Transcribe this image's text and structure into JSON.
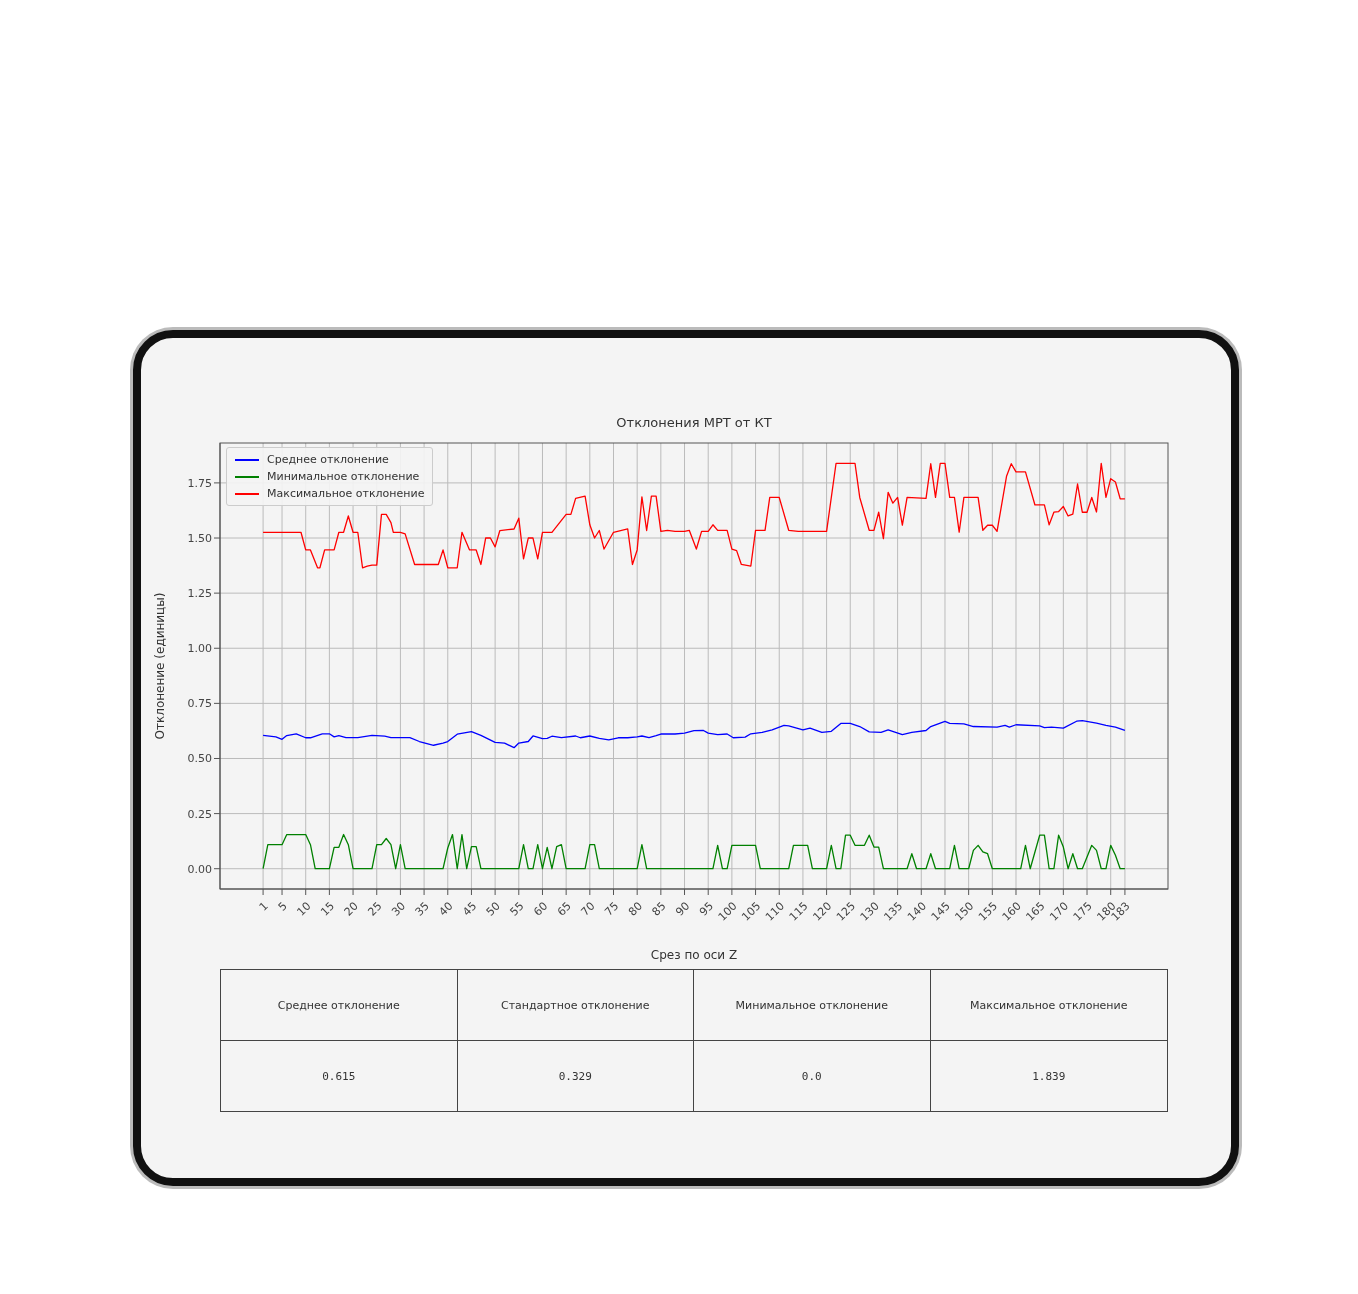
{
  "chart_data": {
    "type": "line",
    "title": "Отклонения МРТ от КТ",
    "xlabel": "Срез по оси Z",
    "ylabel": "Отклонение (единицы)",
    "xlim": [
      -8.1,
      192.1
    ],
    "xticks": [
      1,
      5,
      10,
      15,
      20,
      25,
      30,
      35,
      40,
      45,
      50,
      55,
      60,
      65,
      70,
      75,
      80,
      85,
      90,
      95,
      100,
      105,
      110,
      115,
      120,
      125,
      130,
      135,
      140,
      145,
      150,
      155,
      160,
      165,
      170,
      175,
      180,
      183
    ],
    "ylim": [
      -0.092,
      1.931
    ],
    "yticks": [
      {
        "value": 0,
        "label": "0.00"
      },
      {
        "value": 0.25,
        "label": "0.25"
      },
      {
        "value": 0.5,
        "label": "0.50"
      },
      {
        "value": 0.75,
        "label": "0.75"
      },
      {
        "value": 1,
        "label": "1.00"
      },
      {
        "value": 1.25,
        "label": "1.25"
      },
      {
        "value": 1.5,
        "label": "1.50"
      },
      {
        "value": 1.75,
        "label": "1.75"
      }
    ],
    "grid": true,
    "legend": "top left",
    "marker": "none",
    "line_style": "solid",
    "series": [
      {
        "name": "Среднее отклонение",
        "color": "#0000ff",
        "x": [
          1,
          3.7,
          5,
          6,
          8,
          10,
          11,
          13.5,
          15,
          16,
          17,
          18.5,
          21,
          24,
          26.7,
          28,
          32,
          34,
          37,
          39,
          40,
          42,
          45,
          47,
          50,
          52,
          54,
          55,
          57,
          58,
          60,
          61,
          62,
          64,
          67,
          68,
          70,
          72,
          74,
          76,
          78,
          80,
          81,
          82.5,
          84,
          85,
          88,
          90,
          92,
          94,
          95,
          97,
          99,
          100.3,
          102.8,
          104,
          106.4,
          108.5,
          111,
          112,
          115,
          116.5,
          119,
          121,
          123,
          125,
          127,
          129,
          131.5,
          133,
          136,
          138,
          141,
          142,
          145,
          146,
          149,
          151,
          156,
          157.7,
          158.6,
          160,
          165,
          166,
          167.5,
          170,
          172.8,
          174,
          177,
          179,
          181,
          183
        ],
        "values": [
          0.605,
          0.598,
          0.587,
          0.604,
          0.612,
          0.594,
          0.594,
          0.612,
          0.612,
          0.598,
          0.604,
          0.595,
          0.595,
          0.605,
          0.601,
          0.595,
          0.595,
          0.577,
          0.56,
          0.57,
          0.577,
          0.61,
          0.622,
          0.605,
          0.573,
          0.57,
          0.549,
          0.57,
          0.577,
          0.602,
          0.59,
          0.591,
          0.601,
          0.595,
          0.602,
          0.594,
          0.602,
          0.591,
          0.584,
          0.594,
          0.594,
          0.598,
          0.602,
          0.595,
          0.604,
          0.611,
          0.611,
          0.615,
          0.626,
          0.627,
          0.615,
          0.608,
          0.611,
          0.594,
          0.597,
          0.612,
          0.618,
          0.63,
          0.65,
          0.648,
          0.63,
          0.638,
          0.618,
          0.623,
          0.659,
          0.659,
          0.645,
          0.621,
          0.618,
          0.63,
          0.608,
          0.618,
          0.627,
          0.645,
          0.668,
          0.659,
          0.657,
          0.645,
          0.642,
          0.65,
          0.642,
          0.653,
          0.648,
          0.64,
          0.642,
          0.638,
          0.669,
          0.672,
          0.66,
          0.65,
          0.642,
          0.627
        ]
      },
      {
        "name": "Минимальное отклонение",
        "color": "#008000",
        "x": [
          1,
          2,
          5,
          6,
          10,
          11,
          12,
          15,
          16,
          17,
          18,
          19,
          20,
          24,
          25,
          26,
          27,
          28,
          29,
          30,
          31,
          39,
          40,
          41,
          42,
          43,
          44,
          45,
          46,
          47,
          55,
          56,
          57,
          58,
          59,
          60,
          61,
          62,
          63,
          64,
          65,
          69,
          70,
          71,
          72,
          80,
          81,
          82,
          96,
          97,
          98,
          99,
          100,
          105,
          106,
          112,
          113,
          116,
          117,
          120,
          121,
          122,
          123,
          124,
          125,
          126,
          128,
          129,
          130,
          131,
          132,
          137,
          138,
          139,
          141,
          142,
          143,
          146,
          147,
          148,
          150,
          151,
          152,
          153,
          154,
          155,
          161,
          162,
          163,
          165,
          166,
          167,
          168,
          169,
          170,
          171,
          172,
          173,
          174,
          176,
          177,
          178,
          179,
          180,
          181,
          182,
          183
        ],
        "values": [
          0,
          0.109,
          0.109,
          0.155,
          0.155,
          0.109,
          0,
          0,
          0.097,
          0.097,
          0.155,
          0.109,
          0,
          0,
          0.109,
          0.109,
          0.137,
          0.109,
          0,
          0.109,
          0,
          0,
          0.094,
          0.155,
          0,
          0.155,
          0,
          0.1,
          0.1,
          0,
          0,
          0.109,
          0,
          0,
          0.109,
          0,
          0.097,
          0,
          0.1,
          0.109,
          0,
          0,
          0.109,
          0.109,
          0,
          0,
          0.109,
          0,
          0,
          0.106,
          0,
          0,
          0.106,
          0.106,
          0,
          0,
          0.106,
          0.106,
          0,
          0,
          0.106,
          0,
          0,
          0.152,
          0.152,
          0.106,
          0.106,
          0.152,
          0.098,
          0.098,
          0,
          0,
          0.068,
          0,
          0,
          0.068,
          0,
          0,
          0.106,
          0,
          0,
          0.083,
          0.106,
          0.076,
          0.068,
          0,
          0,
          0.106,
          0,
          0.152,
          0.152,
          0,
          0,
          0.152,
          0.098,
          0,
          0.068,
          0,
          0,
          0.106,
          0.083,
          0,
          0,
          0.106,
          0.061,
          0,
          0
        ]
      },
      {
        "name": "Максимальное отклонение",
        "color": "#ff0000",
        "x": [
          1,
          9,
          10,
          11,
          12.5,
          13,
          14,
          16,
          17,
          18,
          19,
          20,
          21,
          22,
          23,
          24,
          25,
          26,
          27,
          28,
          28.5,
          30,
          31,
          33,
          38,
          39,
          40,
          42,
          43,
          44.6,
          46,
          47,
          48,
          49,
          50,
          51,
          54,
          55,
          56,
          57,
          58,
          59,
          60,
          62,
          65,
          66,
          67,
          69,
          70,
          71,
          72,
          73,
          75,
          78,
          79,
          80,
          81,
          82,
          83,
          84,
          85,
          86.4,
          88,
          90,
          91,
          92.5,
          93.6,
          95,
          96,
          97,
          99,
          100,
          101,
          102,
          104,
          105,
          107,
          108,
          110,
          112,
          114,
          120,
          122,
          126,
          127,
          129,
          130,
          131,
          132,
          133,
          134,
          135,
          136,
          137,
          141,
          142,
          143,
          144,
          145,
          146,
          147,
          148,
          149,
          152,
          153,
          154,
          155,
          156,
          158,
          159,
          160,
          162,
          164,
          166,
          167,
          168,
          169,
          170,
          171,
          172,
          173,
          174,
          175,
          176,
          177,
          178,
          179,
          180,
          181,
          182,
          183
        ],
        "values": [
          1.526,
          1.526,
          1.446,
          1.446,
          1.365,
          1.365,
          1.446,
          1.446,
          1.526,
          1.526,
          1.6,
          1.526,
          1.526,
          1.365,
          1.372,
          1.377,
          1.377,
          1.607,
          1.607,
          1.57,
          1.526,
          1.526,
          1.519,
          1.38,
          1.38,
          1.446,
          1.365,
          1.365,
          1.526,
          1.446,
          1.446,
          1.38,
          1.5,
          1.5,
          1.46,
          1.534,
          1.541,
          1.59,
          1.405,
          1.5,
          1.5,
          1.405,
          1.526,
          1.526,
          1.607,
          1.607,
          1.68,
          1.69,
          1.56,
          1.5,
          1.534,
          1.45,
          1.526,
          1.541,
          1.38,
          1.446,
          1.687,
          1.534,
          1.69,
          1.69,
          1.53,
          1.535,
          1.53,
          1.53,
          1.535,
          1.45,
          1.53,
          1.53,
          1.56,
          1.535,
          1.535,
          1.45,
          1.443,
          1.38,
          1.373,
          1.535,
          1.535,
          1.684,
          1.684,
          1.535,
          1.53,
          1.53,
          1.839,
          1.839,
          1.684,
          1.535,
          1.535,
          1.617,
          1.497,
          1.707,
          1.658,
          1.684,
          1.558,
          1.684,
          1.68,
          1.837,
          1.684,
          1.839,
          1.839,
          1.684,
          1.684,
          1.527,
          1.684,
          1.684,
          1.535,
          1.558,
          1.558,
          1.53,
          1.78,
          1.837,
          1.8,
          1.8,
          1.65,
          1.65,
          1.56,
          1.617,
          1.62,
          1.643,
          1.6,
          1.608,
          1.745,
          1.617,
          1.617,
          1.684,
          1.618,
          1.839,
          1.684,
          1.769,
          1.754,
          1.678,
          1.678
        ]
      }
    ],
    "annotations": [
      "Среднее отклонение",
      "Стандартное отклонение",
      "Минимальное отклонение",
      "Максимальное отклонение",
      "0.615",
      "0.329",
      "0.0",
      "1.839"
    ]
  }
}
